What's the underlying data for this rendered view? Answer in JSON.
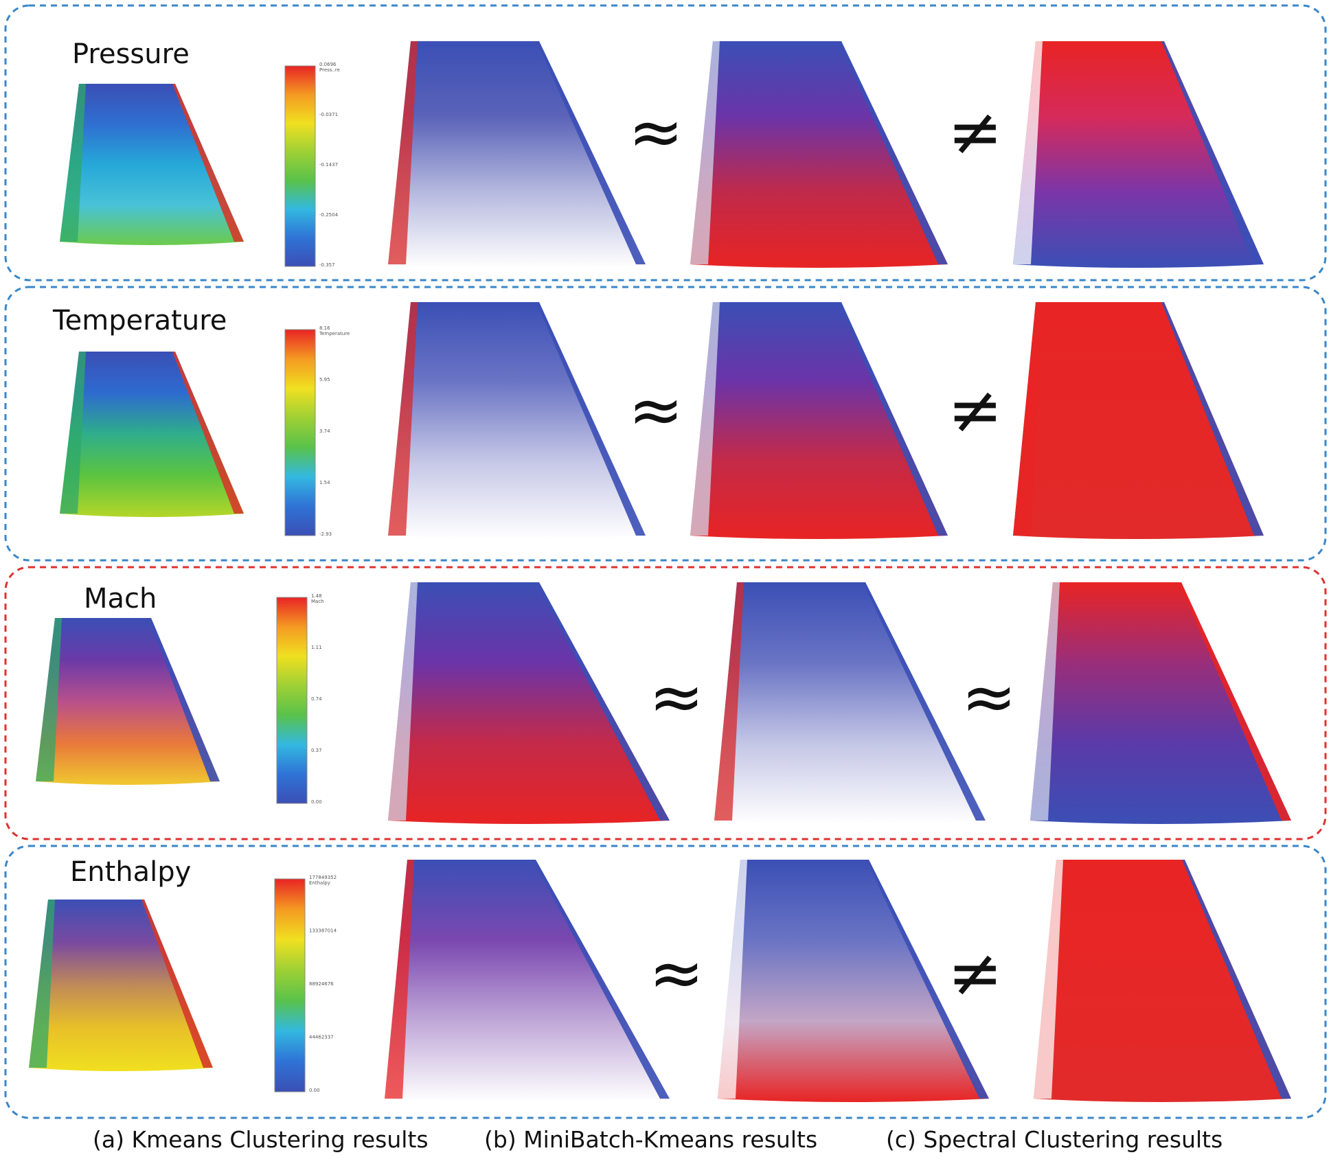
{
  "panels": [
    {
      "name": "Pressure",
      "border_color": "#3a86c8",
      "cmp1": "≈",
      "cmp2": "≠",
      "scale_labels": [
        "Press..re",
        "-0.357",
        "-0.2504",
        "-0.1437",
        "-0.0371",
        "0.0696"
      ],
      "kmeans_stops": [
        "#3b4fb5",
        "#2f6fd0",
        "#26a8d8",
        "#48c2d8",
        "#6ccb4a"
      ],
      "kmeans_edge": "#d43a2a",
      "b_stops": [
        "#3b4fb5",
        "#5a63b8",
        "#b6b9df",
        "#ffffff"
      ],
      "b_edge": "#3b4fb5",
      "b_left": "#d82828",
      "c_stops": [
        "#3b4fb5",
        "#6b34a8",
        "#c02a4a",
        "#e82424"
      ],
      "c_edge": "#3b4fb5",
      "c_left": "#d0d4e8",
      "d_stops": [
        "#e82424",
        "#d62a5a",
        "#7b36a8",
        "#3b4fb5"
      ],
      "d_edge": "#3b4fb5",
      "d_left": "#ffffff"
    },
    {
      "name": "Temperature",
      "border_color": "#3a86c8",
      "cmp1": "≈",
      "cmp2": "≠",
      "scale_labels": [
        "Temperature",
        "-2.93",
        "1.54",
        "3.74",
        "5.95",
        "8.16"
      ],
      "kmeans_stops": [
        "#3b4fb5",
        "#2d6bd0",
        "#2fae8a",
        "#5cc440",
        "#b4d628"
      ],
      "kmeans_edge": "#d43a2a",
      "b_stops": [
        "#3b4fb5",
        "#6a74c4",
        "#c4c6e6",
        "#ffffff"
      ],
      "b_edge": "#3b4fb5",
      "b_left": "#d82828",
      "c_stops": [
        "#3b4fb5",
        "#6b34a8",
        "#c42a48",
        "#e82424"
      ],
      "c_edge": "#3b4fb5",
      "c_left": "#d0d4e8",
      "d_stops": [
        "#e82424",
        "#e62626",
        "#e42828",
        "#e22a2a"
      ],
      "d_edge": "#3b4fb5",
      "d_left": "#e82424"
    },
    {
      "name": "Mach",
      "border_color": "#e03030",
      "cmp1": "≈",
      "cmp2": "≈",
      "scale_labels": [
        "Mach",
        "0.00",
        "0.37",
        "0.74",
        "1.11",
        "1.48"
      ],
      "kmeans_stops": [
        "#3b4fb5",
        "#6a3aa8",
        "#b8508c",
        "#e8783a",
        "#f0c830"
      ],
      "kmeans_edge": "#3b4fb5",
      "b_stops": [
        "#3b4fb5",
        "#6b34a8",
        "#c42a48",
        "#e82424"
      ],
      "b_edge": "#3b4fb5",
      "b_left": "#d0d4e8",
      "c_stops": [
        "#3b4fb5",
        "#6a74c4",
        "#c4c6e6",
        "#ffffff"
      ],
      "c_edge": "#3b4fb5",
      "c_left": "#d82828",
      "d_stops": [
        "#e82424",
        "#9a2e7a",
        "#5a3aa8",
        "#3b4fb5"
      ],
      "d_edge": "#e82424",
      "d_left": "#d0d4e8"
    },
    {
      "name": "Enthalpy",
      "border_color": "#3a86c8",
      "cmp1": "≈",
      "cmp2": "≠",
      "scale_labels": [
        "Enthalpy",
        "0.00",
        "44462337",
        "88924676",
        "133387014",
        "177849352"
      ],
      "kmeans_stops": [
        "#3b4fb5",
        "#7a4aa0",
        "#c08a58",
        "#e8c028",
        "#f0e020"
      ],
      "kmeans_edge": "#d43a2a",
      "b_stops": [
        "#3b4fb5",
        "#7a48b0",
        "#c0a8d8",
        "#ffffff"
      ],
      "b_edge": "#3b4fb5",
      "b_left": "#e82424",
      "c_stops": [
        "#3b4fb5",
        "#6a74c4",
        "#c4a6c6",
        "#e82424"
      ],
      "c_edge": "#3b4fb5",
      "c_left": "#ffffff",
      "d_stops": [
        "#e82424",
        "#e82626",
        "#e42828",
        "#e22a2a"
      ],
      "d_edge": "#3b4fb5",
      "d_left": "#ffffff"
    }
  ],
  "captions": {
    "a": "(a) Kmeans Clustering results",
    "b": "(b) MiniBatch-Kmeans results",
    "c": "(c) Spectral Clustering results"
  }
}
